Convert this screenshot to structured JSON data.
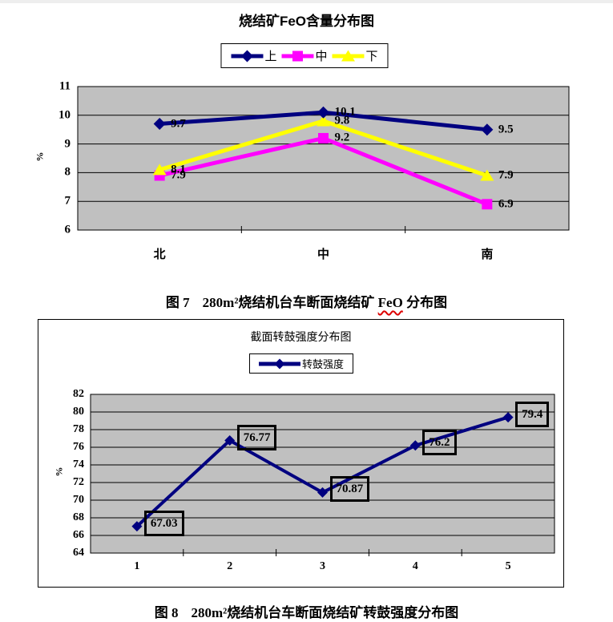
{
  "page": {
    "background": "#ffffff"
  },
  "chart_data": [
    {
      "type": "line",
      "title": "烧结矿FeO含量分布图",
      "categories": [
        "北",
        "中",
        "南"
      ],
      "series": [
        {
          "name": "上",
          "values": [
            9.7,
            10.1,
            9.5
          ],
          "color": "#000080",
          "marker": "diamond"
        },
        {
          "name": "中",
          "values": [
            7.9,
            9.2,
            6.9
          ],
          "color": "#ff00ff",
          "marker": "square"
        },
        {
          "name": "下",
          "values": [
            8.1,
            9.8,
            7.9
          ],
          "color": "#ffff00",
          "marker": "triangle"
        }
      ],
      "xlabel": "",
      "ylabel": "%",
      "ylim": [
        6,
        11
      ],
      "yticks": [
        6,
        7,
        8,
        9,
        10,
        11
      ],
      "grid": true,
      "legend_position": "top",
      "plot_background": "#c0c0c0",
      "data_label_style": "plain"
    },
    {
      "type": "line",
      "title": "截面转鼓强度分布图",
      "categories": [
        "1",
        "2",
        "3",
        "4",
        "5"
      ],
      "series": [
        {
          "name": "转鼓强度",
          "values": [
            67.03,
            76.77,
            70.87,
            76.2,
            79.4
          ],
          "color": "#000080",
          "marker": "diamond"
        }
      ],
      "xlabel": "",
      "ylabel": "%",
      "ylim": [
        64,
        82
      ],
      "yticks": [
        64,
        66,
        68,
        70,
        72,
        74,
        76,
        78,
        80,
        82
      ],
      "grid": true,
      "legend_position": "top",
      "plot_background": "#c0c0c0",
      "data_label_style": "boxed"
    }
  ],
  "figure7": {
    "caption": {
      "label": "图 7",
      "text_before": "280m²烧结机台车断面烧结矿 ",
      "spellcheck_word": "FeO",
      "text_after": " 分布图",
      "spellcheck_underline_color": "#dd0000"
    }
  },
  "figure8": {
    "caption": {
      "label": "图 8",
      "text": "280m²烧结机台车断面烧结矿转鼓强度分布图"
    }
  }
}
